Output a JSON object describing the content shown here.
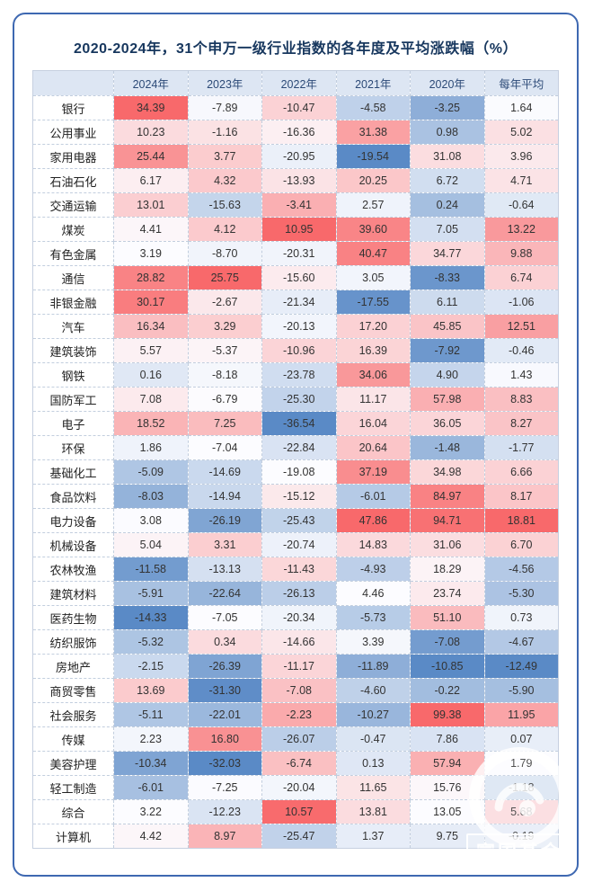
{
  "title": "2020-2024年，31个申万一级行业指数的各年度及平均涨跌幅（%）",
  "watermark": {
    "text": "富国基金"
  },
  "colors": {
    "frame_border": "#3e68b1",
    "header_bg": "#dde6f3",
    "header_text": "#2c4a77",
    "title_text": "#17375e"
  },
  "chart_data": {
    "type": "heatmap",
    "title": "2020-2024年，31个申万一级行业指数的各年度及平均涨跌幅（%）",
    "columns": [
      "2024年",
      "2023年",
      "2022年",
      "2021年",
      "2020年",
      "每年平均"
    ],
    "rows": [
      {
        "label": "银行",
        "values": [
          34.39,
          -7.89,
          -10.47,
          -4.58,
          -3.25,
          1.64
        ]
      },
      {
        "label": "公用事业",
        "values": [
          10.23,
          -1.16,
          -16.36,
          31.38,
          0.98,
          5.02
        ]
      },
      {
        "label": "家用电器",
        "values": [
          25.44,
          3.77,
          -20.95,
          -19.54,
          31.08,
          3.96
        ]
      },
      {
        "label": "石油石化",
        "values": [
          6.17,
          4.32,
          -13.93,
          20.25,
          6.72,
          4.71
        ]
      },
      {
        "label": "交通运输",
        "values": [
          13.01,
          -15.63,
          -3.41,
          2.57,
          0.24,
          -0.64
        ]
      },
      {
        "label": "煤炭",
        "values": [
          4.41,
          4.12,
          10.95,
          39.6,
          7.05,
          13.22
        ]
      },
      {
        "label": "有色金属",
        "values": [
          3.19,
          -8.7,
          -20.31,
          40.47,
          34.77,
          9.88
        ]
      },
      {
        "label": "通信",
        "values": [
          28.82,
          25.75,
          -15.6,
          3.05,
          -8.33,
          6.74
        ]
      },
      {
        "label": "非银金融",
        "values": [
          30.17,
          -2.67,
          -21.34,
          -17.55,
          6.11,
          -1.06
        ]
      },
      {
        "label": "汽车",
        "values": [
          16.34,
          3.29,
          -20.13,
          17.2,
          45.85,
          12.51
        ]
      },
      {
        "label": "建筑装饰",
        "values": [
          5.57,
          -5.37,
          -10.96,
          16.39,
          -7.92,
          -0.46
        ]
      },
      {
        "label": "钢铁",
        "values": [
          0.16,
          -8.18,
          -23.78,
          34.06,
          4.9,
          1.43
        ]
      },
      {
        "label": "国防军工",
        "values": [
          7.08,
          -6.79,
          -25.3,
          11.17,
          57.98,
          8.83
        ]
      },
      {
        "label": "电子",
        "values": [
          18.52,
          7.25,
          -36.54,
          16.04,
          36.05,
          8.27
        ]
      },
      {
        "label": "环保",
        "values": [
          1.86,
          -7.04,
          -22.84,
          20.64,
          -1.48,
          -1.77
        ]
      },
      {
        "label": "基础化工",
        "values": [
          -5.09,
          -14.69,
          -19.08,
          37.19,
          34.98,
          6.66
        ]
      },
      {
        "label": "食品饮料",
        "values": [
          -8.03,
          -14.94,
          -15.12,
          -6.01,
          84.97,
          8.17
        ]
      },
      {
        "label": "电力设备",
        "values": [
          3.08,
          -26.19,
          -25.43,
          47.86,
          94.71,
          18.81
        ]
      },
      {
        "label": "机械设备",
        "values": [
          5.04,
          3.31,
          -20.74,
          14.83,
          31.06,
          6.7
        ]
      },
      {
        "label": "农林牧渔",
        "values": [
          -11.58,
          -13.13,
          -11.43,
          -4.93,
          18.29,
          -4.56
        ]
      },
      {
        "label": "建筑材料",
        "values": [
          -5.91,
          -22.64,
          -26.13,
          4.46,
          23.74,
          -5.3
        ]
      },
      {
        "label": "医药生物",
        "values": [
          -14.33,
          -7.05,
          -20.34,
          -5.73,
          51.1,
          0.73
        ]
      },
      {
        "label": "纺织服饰",
        "values": [
          -5.32,
          0.34,
          -14.66,
          3.39,
          -7.08,
          -4.67
        ]
      },
      {
        "label": "房地产",
        "values": [
          -2.15,
          -26.39,
          -11.17,
          -11.89,
          -10.85,
          -12.49
        ]
      },
      {
        "label": "商贸零售",
        "values": [
          13.69,
          -31.3,
          -7.08,
          -4.6,
          -0.22,
          -5.9
        ]
      },
      {
        "label": "社会服务",
        "values": [
          -5.11,
          -22.01,
          -2.23,
          -10.27,
          99.38,
          11.95
        ]
      },
      {
        "label": "传媒",
        "values": [
          2.23,
          16.8,
          -26.07,
          -0.47,
          7.86,
          0.07
        ]
      },
      {
        "label": "美容护理",
        "values": [
          -10.34,
          -32.03,
          -6.74,
          0.13,
          57.94,
          1.79
        ]
      },
      {
        "label": "轻工制造",
        "values": [
          -6.01,
          -7.25,
          -20.04,
          11.65,
          15.76,
          -1.18
        ]
      },
      {
        "label": "综合",
        "values": [
          3.22,
          -12.23,
          10.57,
          13.81,
          13.05,
          5.68
        ]
      },
      {
        "label": "计算机",
        "values": [
          4.42,
          8.97,
          -25.47,
          1.37,
          9.75,
          -0.19
        ]
      }
    ],
    "value_format": "two decimals",
    "colorscale": {
      "normalization": "per-column, blue at column min, white at column median, red at column max",
      "min_color": "#5A8AC6",
      "mid_color": "#FCFCFF",
      "max_color": "#F8696B"
    },
    "legend_position": "none",
    "grid": true
  }
}
